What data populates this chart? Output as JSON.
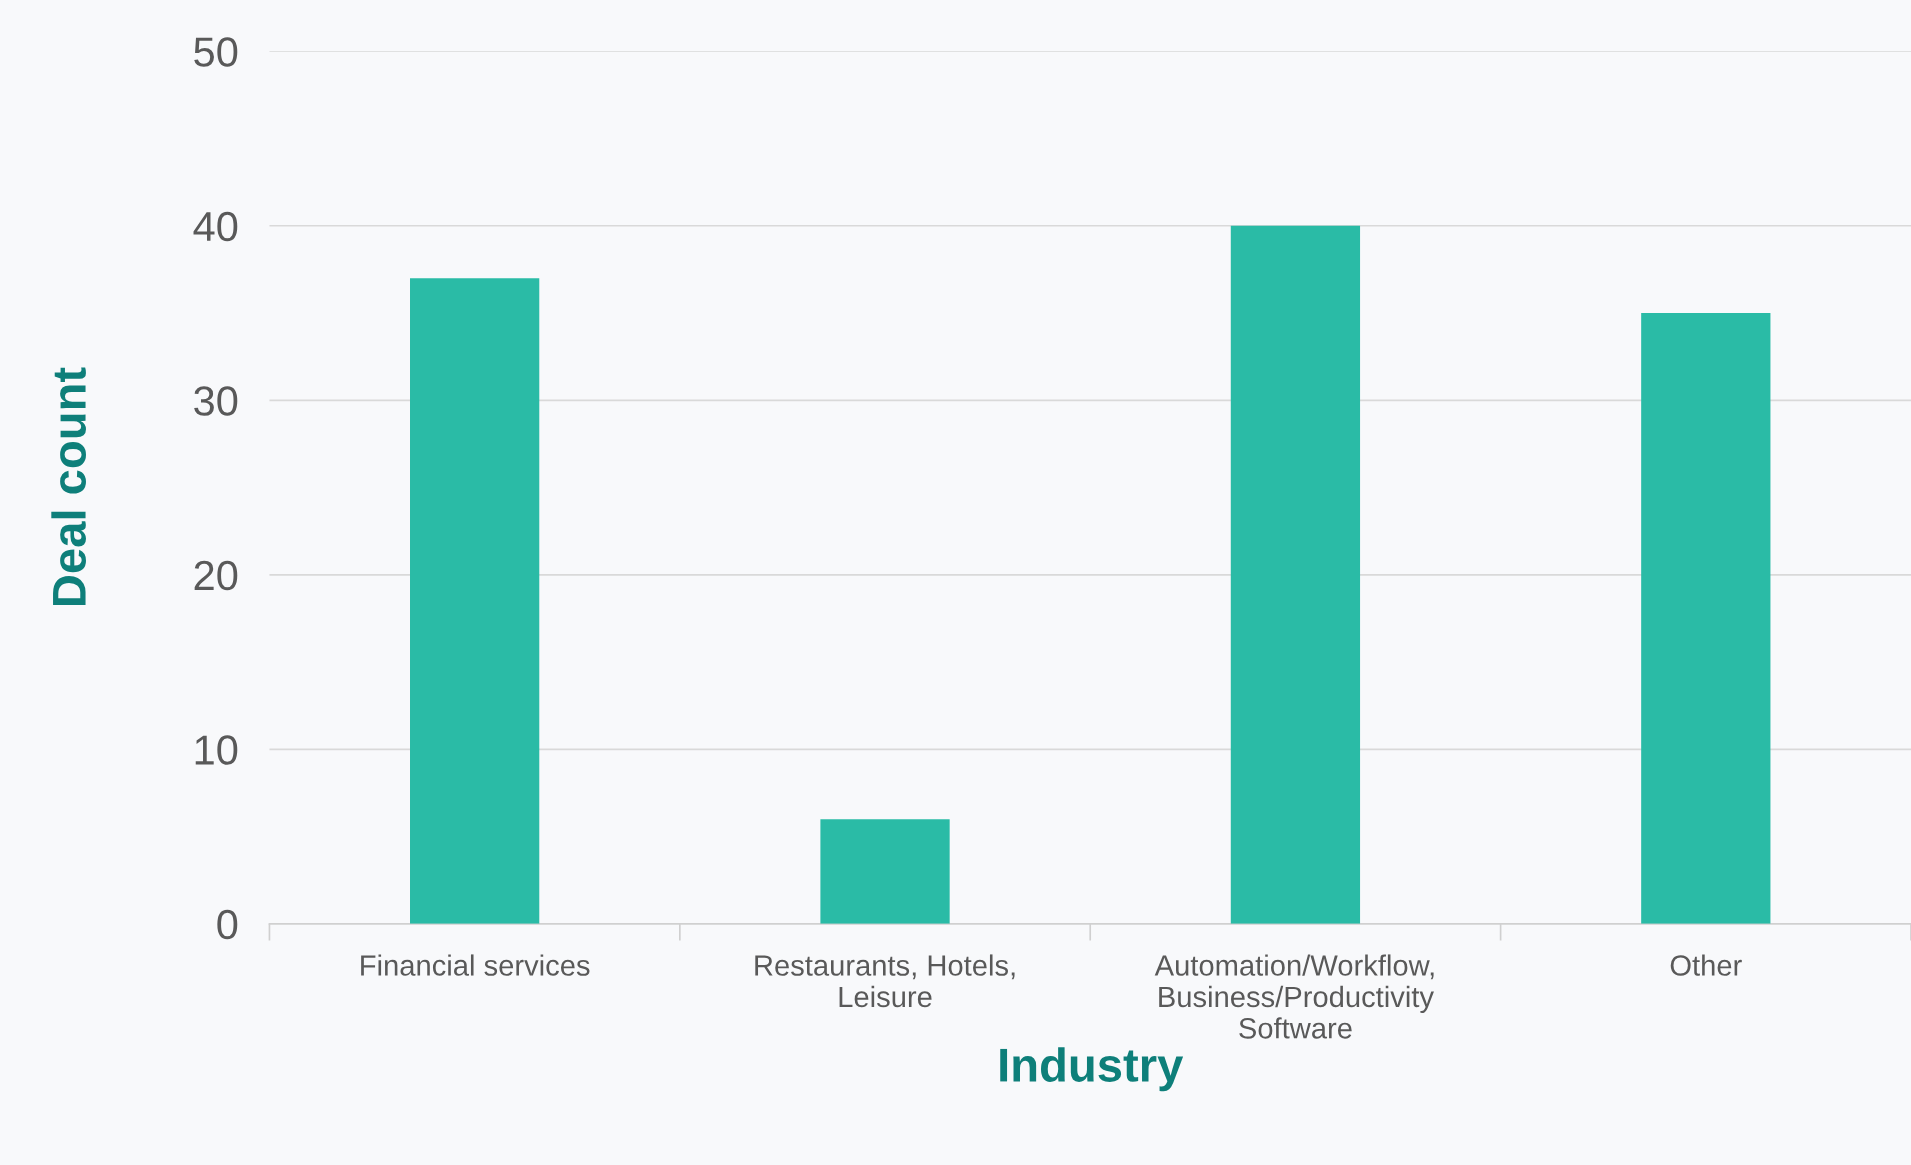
{
  "chart_data": {
    "type": "bar",
    "xlabel": "Industry",
    "ylabel": "Deal count",
    "categories": [
      "Financial services",
      "Restaurants, Hotels,\nLeisure",
      "Automation/Workflow,\nBusiness/Productivity\nSoftware",
      "Other"
    ],
    "values": [
      37,
      6,
      40,
      35
    ],
    "color": "#2abba6",
    "ylim": [
      0,
      50
    ],
    "yticks": [
      0,
      10,
      20,
      30,
      40,
      50
    ],
    "grid": "y",
    "legend": false
  }
}
